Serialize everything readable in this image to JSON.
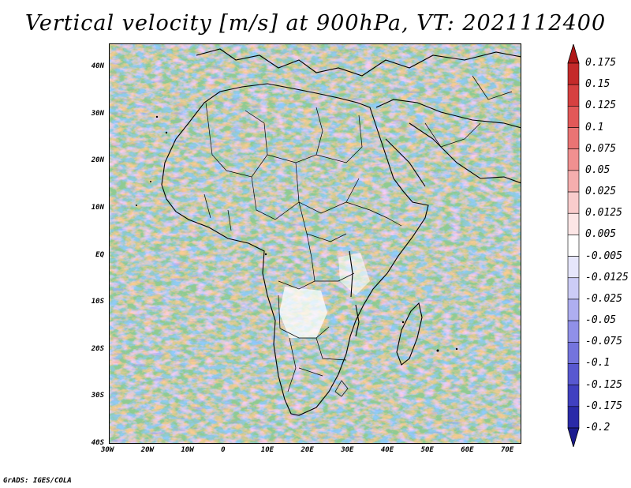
{
  "title": "Vertical velocity [m/s] at 900hPa, VT: 2021112400",
  "footer": "GrADS: IGES/COLA",
  "map": {
    "lat_range": [
      -40,
      45
    ],
    "lon_range": [
      -30,
      75
    ],
    "lat_ticks": [
      "40N",
      "30N",
      "20N",
      "10N",
      "EQ",
      "10S",
      "20S",
      "30S",
      "40S"
    ],
    "lon_ticks": [
      "30W",
      "20W",
      "10W",
      "0",
      "10E",
      "20E",
      "30E",
      "40E",
      "50E",
      "60E",
      "70E"
    ]
  },
  "colorbar": {
    "labels": [
      "0.175",
      "0.15",
      "0.125",
      "0.1",
      "0.075",
      "0.05",
      "0.025",
      "0.0125",
      "0.005",
      "-0.005",
      "-0.0125",
      "-0.025",
      "-0.05",
      "-0.075",
      "-0.1",
      "-0.125",
      "-0.175",
      "-0.2"
    ],
    "colors": [
      "#b01818",
      "#c42a2a",
      "#d64040",
      "#e25858",
      "#ea7474",
      "#f09090",
      "#f5aeae",
      "#f9cccc",
      "#fce6e6",
      "#ffffff",
      "#e6e6fb",
      "#ccccf6",
      "#aeaef0",
      "#9090e8",
      "#7474dd",
      "#5858d0",
      "#4040c0",
      "#2a2aa8",
      "#1c1c90"
    ]
  },
  "colors": {
    "positive": "#e05050",
    "negative": "#5a5ae0",
    "land_outline": "#000000"
  }
}
